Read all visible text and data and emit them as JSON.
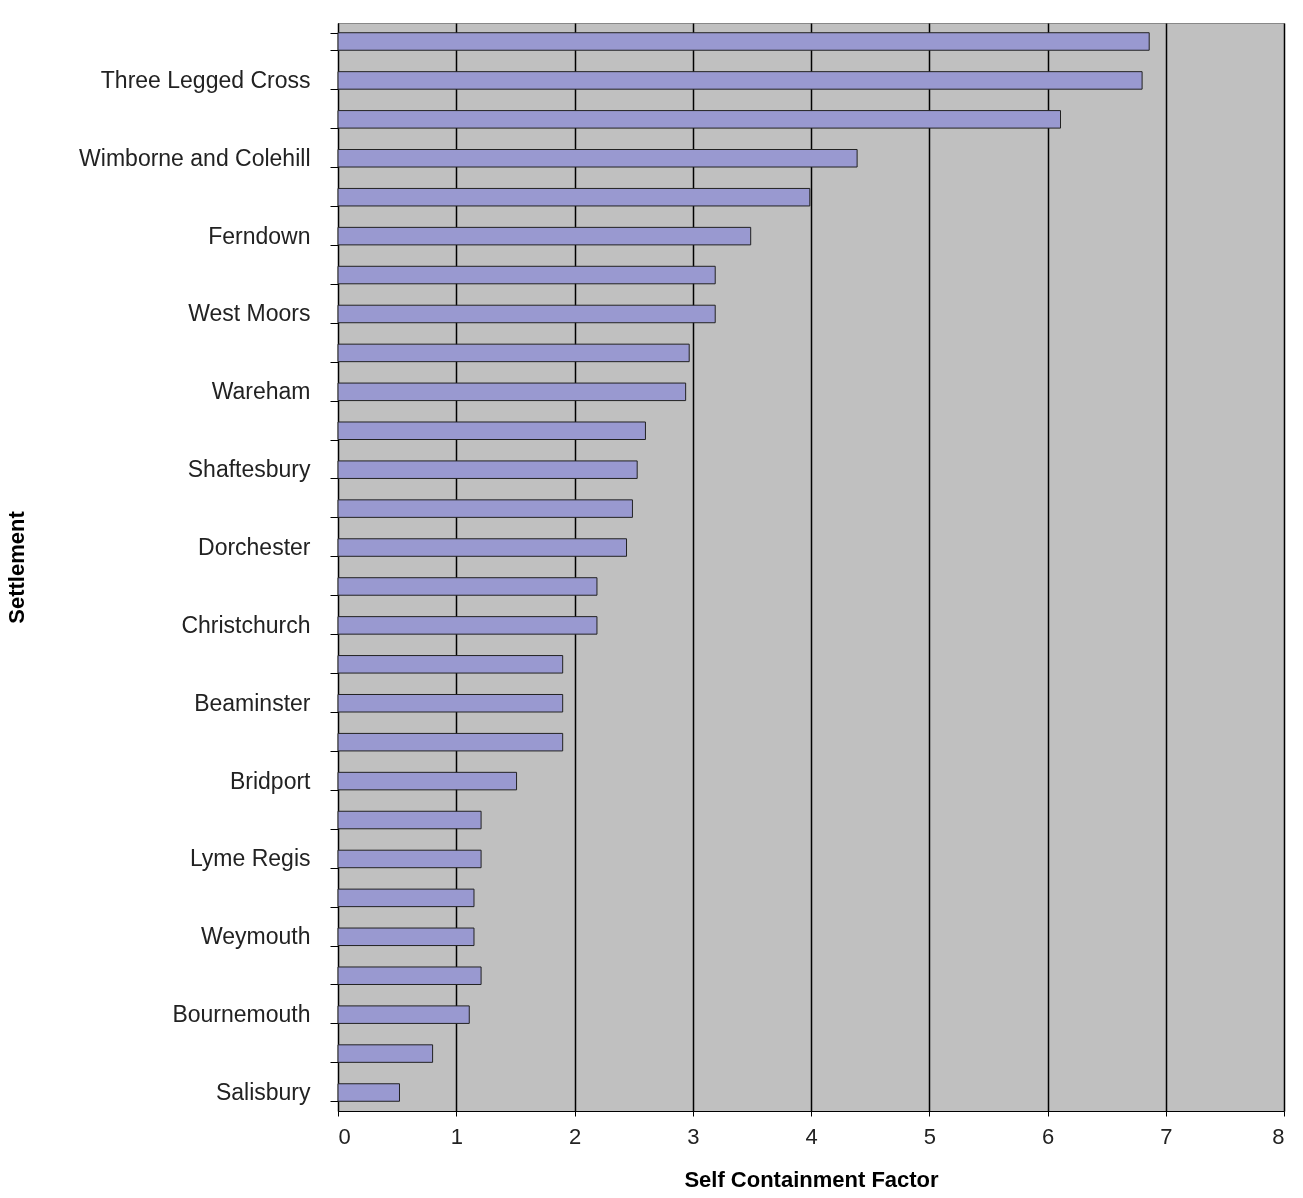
{
  "chart_data": {
    "type": "bar",
    "orientation": "horizontal",
    "xlabel": "Self Containment Factor",
    "ylabel": "Settlement",
    "categories": [
      null,
      "Three Legged Cross",
      null,
      "Wimborne and Colehill",
      null,
      "Ferndown",
      null,
      "West Moors",
      null,
      "Wareham",
      null,
      "Shaftesbury",
      null,
      "Dorchester",
      null,
      "Christchurch",
      null,
      "Beaminster",
      null,
      "Bridport",
      null,
      "Lyme Regis",
      null,
      "Weymouth",
      null,
      "Bournemouth",
      null,
      "Salisbury"
    ],
    "values": [
      6.86,
      6.8,
      6.11,
      4.39,
      3.99,
      3.49,
      3.19,
      3.19,
      2.97,
      2.94,
      2.6,
      2.53,
      2.49,
      2.44,
      2.19,
      2.19,
      1.9,
      1.9,
      1.9,
      1.51,
      1.21,
      1.21,
      1.15,
      1.15,
      1.21,
      1.11,
      0.8,
      0.52
    ],
    "color": "#9999d0",
    "xlim": [
      0,
      8
    ],
    "xticks": [
      0,
      1,
      2,
      3,
      4,
      5,
      6,
      7,
      8
    ],
    "grid": "x"
  }
}
